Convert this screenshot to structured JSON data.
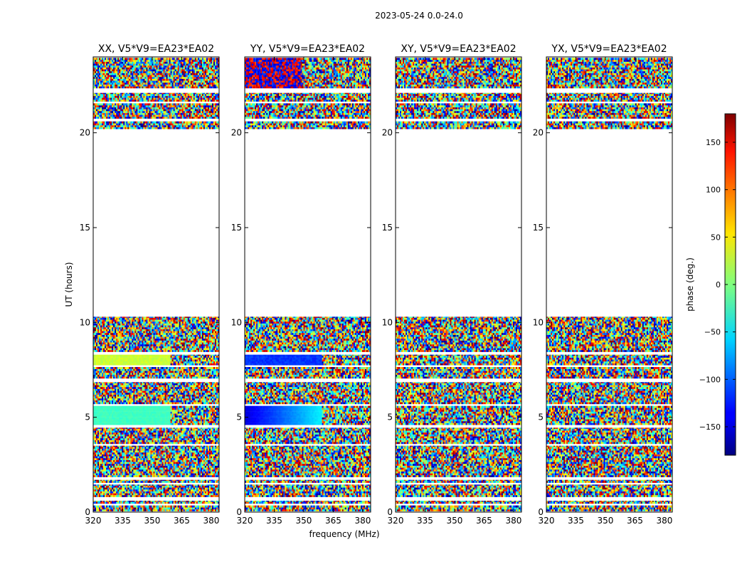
{
  "chart_data": {
    "type": "heatmap",
    "suptitle": "2023-05-24 0.0-24.0",
    "xlabel": "frequency (MHz)",
    "ylabel": "UT (hours)",
    "xlim": [
      320,
      384
    ],
    "ylim": [
      0,
      24
    ],
    "xticks": [
      320,
      335,
      350,
      365,
      380
    ],
    "yticks": [
      0,
      5,
      10,
      15,
      20
    ],
    "panels": [
      {
        "title": "XX, V5*V9=EA23*EA02",
        "pol": "XX"
      },
      {
        "title": "YY, V5*V9=EA23*EA02",
        "pol": "YY"
      },
      {
        "title": "XY, V5*V9=EA23*EA02",
        "pol": "XY"
      },
      {
        "title": "YX, V5*V9=EA23*EA02",
        "pol": "YX"
      }
    ],
    "colorbar": {
      "label": "phase (deg.)",
      "range": [
        -180,
        180
      ],
      "ticks": [
        150,
        100,
        50,
        0,
        -50,
        -100,
        -150
      ],
      "tick_labels": [
        "150",
        "100",
        "50",
        "0",
        "−50",
        "−100",
        "−150"
      ],
      "colormap": "jet"
    },
    "data_gaps_hours": [
      [
        10.3,
        20.2
      ]
    ]
  }
}
